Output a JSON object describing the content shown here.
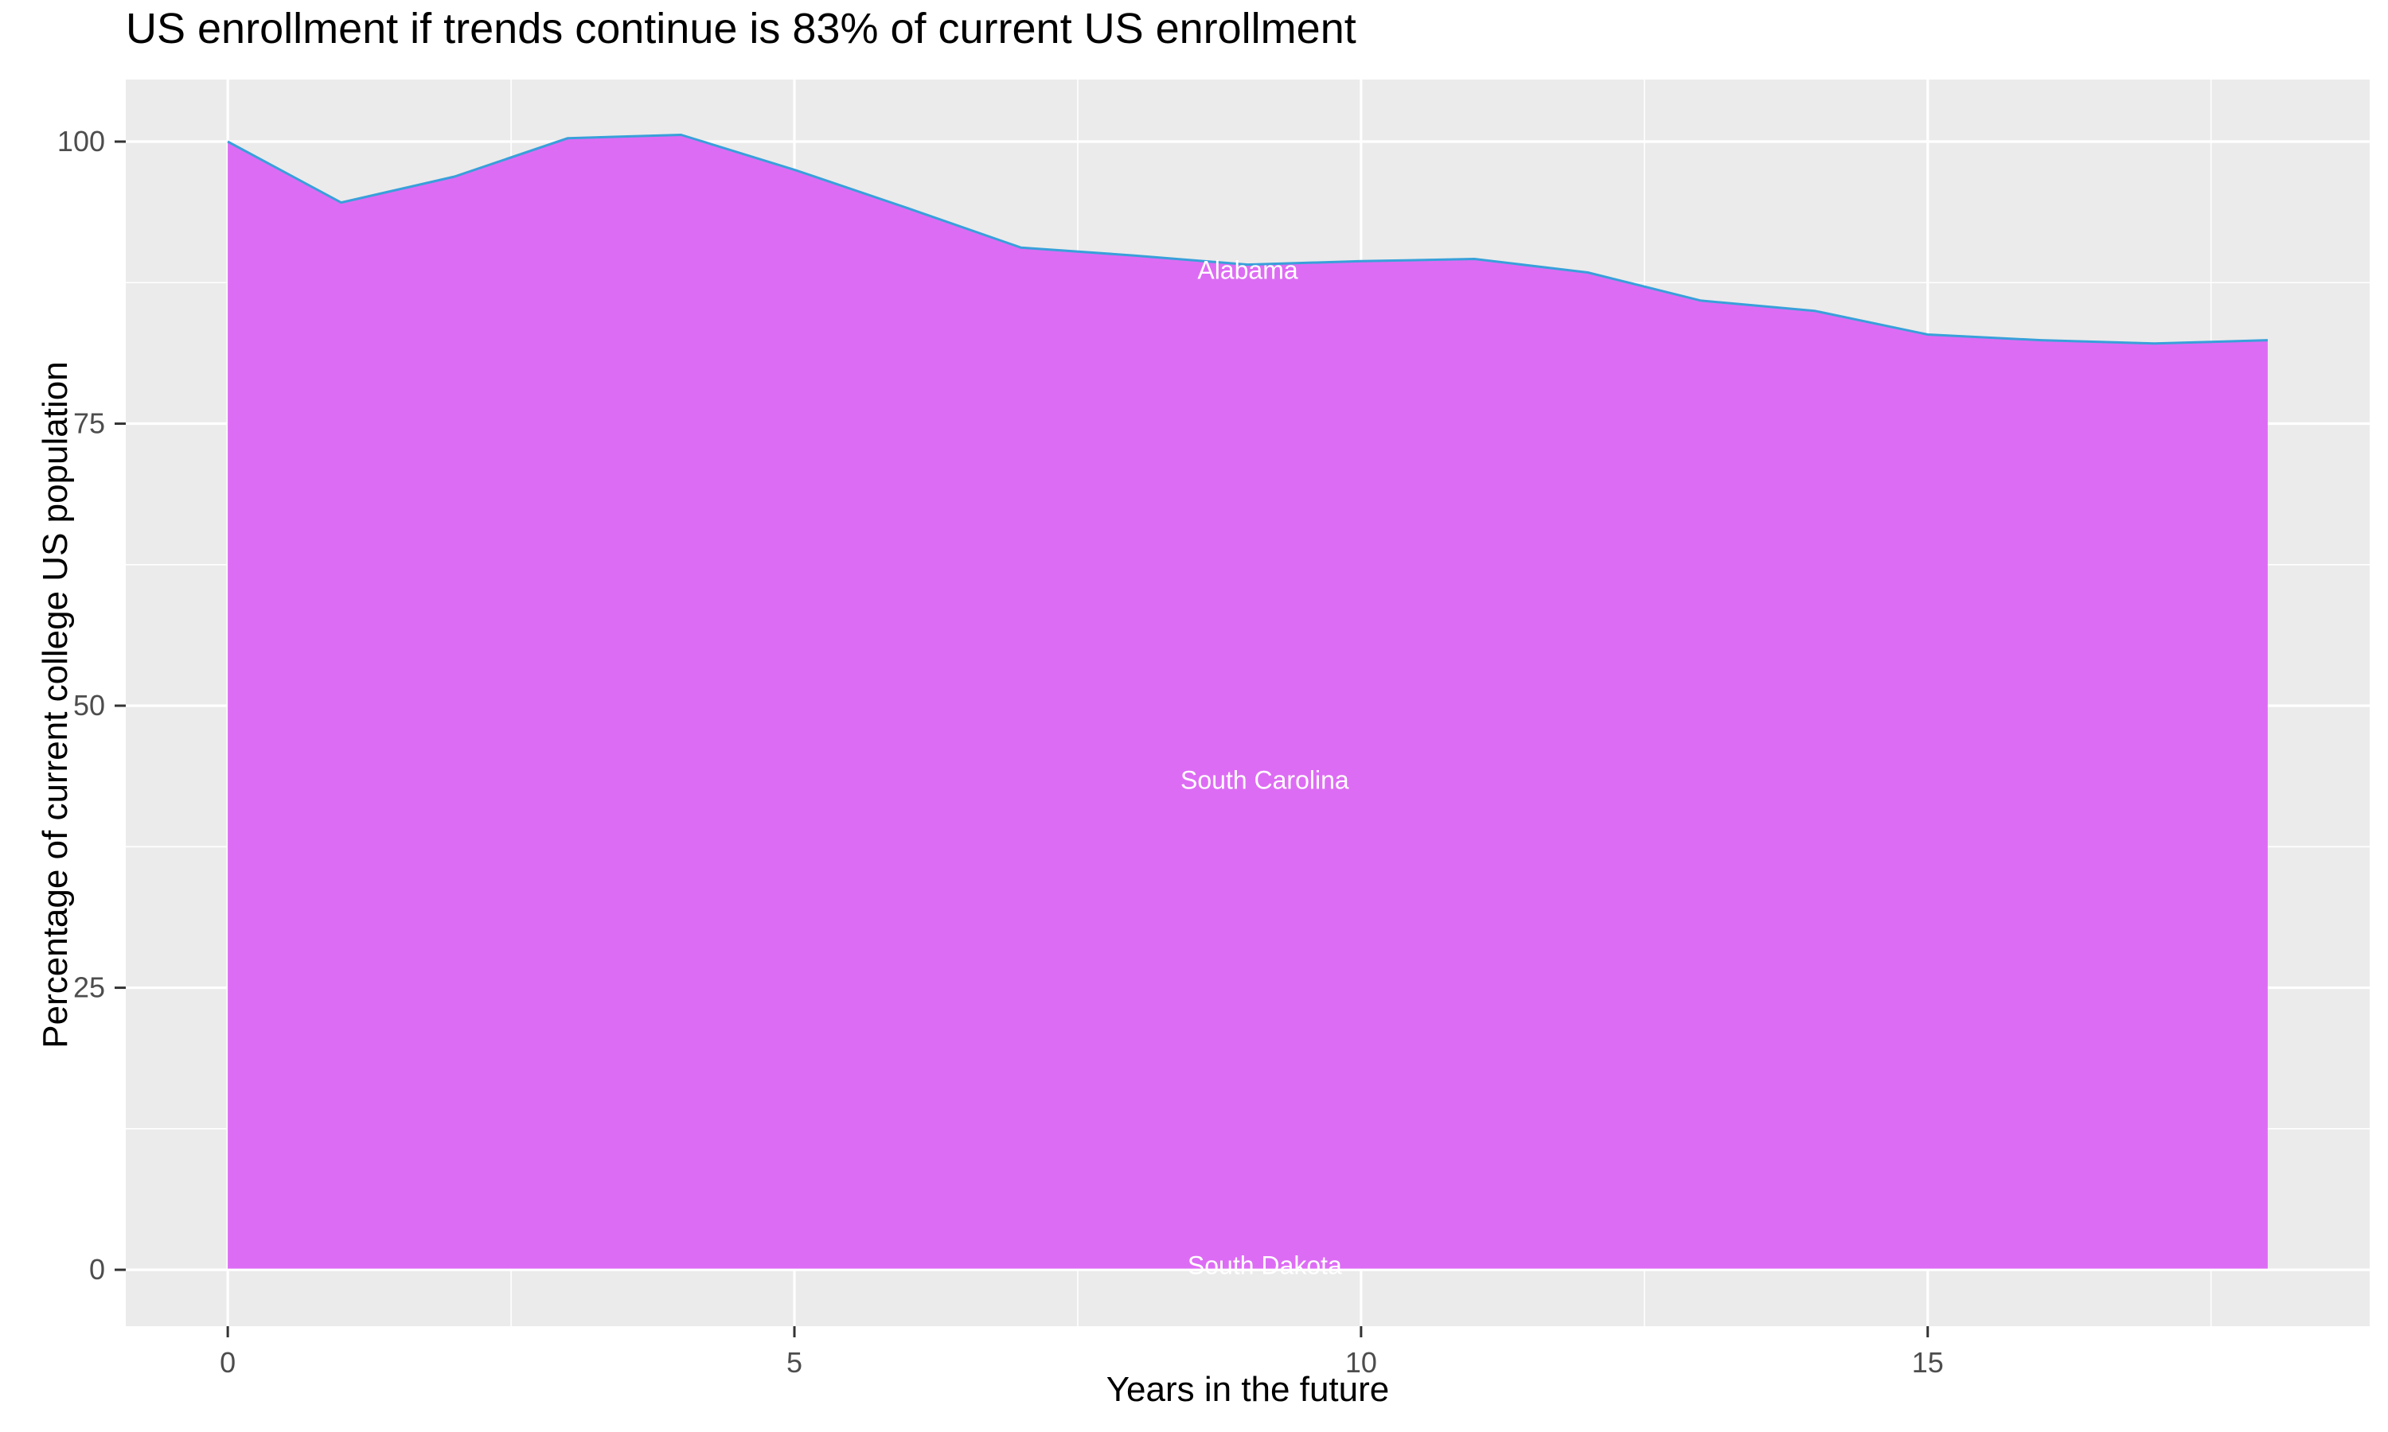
{
  "title": "US enrollment if trends continue is 83% of current US enrollment",
  "chart_data": {
    "type": "area",
    "title": "US enrollment if trends continue is 83% of current US enrollment",
    "xlabel": "Years in the future",
    "ylabel": "Percentage of current college US population",
    "x": [
      0,
      1,
      2,
      3,
      4,
      5,
      6,
      7,
      8,
      9,
      10,
      11,
      12,
      13,
      14,
      15,
      16,
      17,
      18
    ],
    "values": [
      100,
      94.6,
      96.9,
      100.3,
      100.6,
      97.5,
      94.1,
      90.6,
      89.9,
      89.1,
      89.4,
      89.6,
      88.4,
      85.9,
      85.0,
      82.9,
      82.4,
      82.1,
      82.4
    ],
    "x_ticks": [
      0,
      5,
      10,
      15
    ],
    "y_ticks": [
      0,
      25,
      50,
      75,
      100
    ],
    "xlim": [
      -0.9,
      18.9
    ],
    "ylim": [
      -5,
      105.5
    ],
    "grid": "on",
    "legend": "none",
    "annotations": [
      {
        "text": "Alabama",
        "x": 9.0,
        "y": 88.6
      },
      {
        "text": "South Carolina",
        "x": 9.15,
        "y": 43.4
      },
      {
        "text": "South Dakota",
        "x": 9.15,
        "y": 0.4
      }
    ],
    "colors": {
      "area_fill": "#DD6CF4",
      "line_stroke": "#38A0DA",
      "panel_background": "#EBEBEB",
      "gridline": "#FFFFFF",
      "tick_label_text": "#4D4D4D",
      "tick_mark": "#333333",
      "annotation_text": "#FFFFFF"
    }
  }
}
